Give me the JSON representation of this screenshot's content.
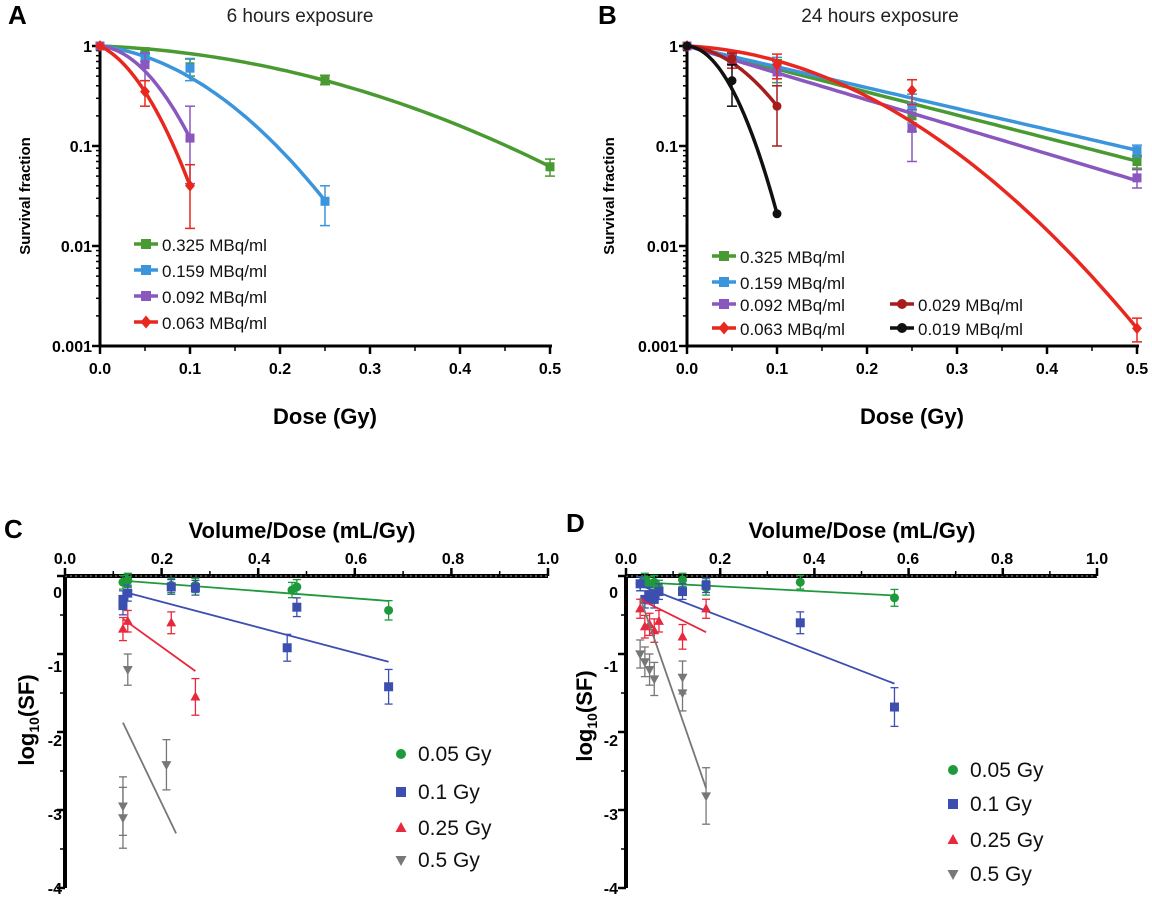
{
  "chart_data": [
    {
      "panel": "A",
      "type": "line",
      "title": "6 hours exposure",
      "xlabel": "Dose (Gy)",
      "ylabel": "Survival fraction",
      "xlim": [
        0,
        0.5
      ],
      "ylim": [
        0.001,
        1
      ],
      "yscale": "log",
      "xticks": [
        "0.0",
        "0.1",
        "0.2",
        "0.3",
        "0.4",
        "0.5"
      ],
      "yticks": [
        "1",
        "0.1",
        "0.01",
        "0.001"
      ],
      "series": [
        {
          "name": "0.325 MBq/ml",
          "color": "#4a9a32",
          "marker": "square",
          "x": [
            0,
            0.05,
            0.1,
            0.25,
            0.5
          ],
          "y": [
            1,
            0.88,
            0.62,
            0.46,
            0.062
          ],
          "err": [
            0,
            0.06,
            0.12,
            0.05,
            0.012
          ],
          "fit": {
            "alpha": 0.8,
            "beta": 9.5
          }
        },
        {
          "name": "0.159 MBq/ml",
          "color": "#3b95dc",
          "marker": "square",
          "x": [
            0,
            0.05,
            0.1,
            0.25
          ],
          "y": [
            1,
            0.78,
            0.6,
            0.028
          ],
          "err": [
            0,
            0.08,
            0.15,
            0.012
          ],
          "fit": {
            "alpha": 2.5,
            "beta": 47
          }
        },
        {
          "name": "0.092 MBq/ml",
          "color": "#8a57bf",
          "marker": "square",
          "x": [
            0,
            0.05,
            0.1
          ],
          "y": [
            1,
            0.65,
            0.12
          ],
          "err": [
            0,
            0.2,
            0.13
          ],
          "fit": {
            "alpha": 2,
            "beta": 192
          }
        },
        {
          "name": "0.063 MBq/ml",
          "color": "#e8281e",
          "marker": "diamond",
          "x": [
            0,
            0.05,
            0.1
          ],
          "y": [
            1,
            0.35,
            0.04
          ],
          "err": [
            0,
            0.1,
            0.025
          ],
          "fit": {
            "alpha": 10,
            "beta": 222
          }
        }
      ]
    },
    {
      "panel": "B",
      "type": "line",
      "title": "24 hours exposure",
      "xlabel": "Dose (Gy)",
      "ylabel": "Survival fraction",
      "xlim": [
        0,
        0.5
      ],
      "ylim": [
        0.001,
        1
      ],
      "yscale": "log",
      "xticks": [
        "0.0",
        "0.1",
        "0.2",
        "0.3",
        "0.4",
        "0.5"
      ],
      "yticks": [
        "1",
        "0.1",
        "0.01",
        "0.001"
      ],
      "series": [
        {
          "name": "0.325 MBq/ml",
          "color": "#4a9a32",
          "marker": "square",
          "x": [
            0,
            0.05,
            0.1,
            0.25,
            0.5
          ],
          "y": [
            1,
            0.75,
            0.58,
            0.2,
            0.07
          ],
          "err": [
            0,
            0.08,
            0.15,
            0.06,
            0.01
          ],
          "fit": {
            "alpha": 5.3,
            "beta": 0
          }
        },
        {
          "name": "0.159 MBq/ml",
          "color": "#3b95dc",
          "marker": "square",
          "x": [
            0,
            0.05,
            0.1,
            0.25,
            0.5
          ],
          "y": [
            1,
            0.78,
            0.62,
            0.25,
            0.09
          ],
          "err": [
            0,
            0.08,
            0.15,
            0.08,
            0.012
          ],
          "fit": {
            "alpha": 4.8,
            "beta": 0
          }
        },
        {
          "name": "0.092 MBq/ml",
          "color": "#8a57bf",
          "marker": "square",
          "x": [
            0,
            0.05,
            0.1,
            0.25,
            0.5
          ],
          "y": [
            1,
            0.7,
            0.55,
            0.15,
            0.048
          ],
          "err": [
            0,
            0.1,
            0.15,
            0.08,
            0.01
          ],
          "fit": {
            "alpha": 6.2,
            "beta": 0
          }
        },
        {
          "name": "0.063 MBq/ml",
          "color": "#e8281e",
          "marker": "diamond",
          "x": [
            0,
            0.05,
            0.1,
            0.25,
            0.5
          ],
          "y": [
            1,
            0.72,
            0.65,
            0.36,
            0.0015
          ],
          "err": [
            0,
            0.12,
            0.18,
            0.1,
            0.0004
          ],
          "fit": {
            "alpha": 1,
            "beta": 24
          }
        },
        {
          "name": "0.029 MBq/ml",
          "color": "#a51e1e",
          "marker": "circle",
          "x": [
            0,
            0.05,
            0.1
          ],
          "y": [
            1,
            0.75,
            0.25
          ],
          "err": [
            0,
            0.1,
            0.15
          ],
          "fit": {
            "alpha": 1.6,
            "beta": 122
          }
        },
        {
          "name": "0.019 MBq/ml",
          "color": "#111111",
          "marker": "circle",
          "x": [
            0,
            0.05,
            0.1
          ],
          "y": [
            1,
            0.45,
            0.021
          ],
          "err": [
            0,
            0.2,
            0
          ],
          "fit": {
            "alpha": 1,
            "beta": 376
          }
        }
      ]
    },
    {
      "panel": "C",
      "type": "scatter",
      "xlabel": "Volume/Dose (mL/Gy)",
      "ylabel": "log10(SF)",
      "xlim": [
        0,
        1.0
      ],
      "ylim": [
        -4,
        0
      ],
      "xticks": [
        "0.0",
        "0.2",
        "0.4",
        "0.6",
        "0.8",
        "1.0"
      ],
      "yticks": [
        "0",
        "-1",
        "-2",
        "-3",
        "-4"
      ],
      "series": [
        {
          "name": "0.05 Gy",
          "color": "#1e9a3c",
          "marker": "circle",
          "x": [
            0.12,
            0.13,
            0.13,
            0.22,
            0.27,
            0.47,
            0.48,
            0.67
          ],
          "y": [
            -0.08,
            -0.05,
            -0.06,
            -0.12,
            -0.12,
            -0.18,
            -0.14,
            -0.44
          ],
          "line": [
            [
              0.12,
              -0.06
            ],
            [
              0.67,
              -0.32
            ]
          ]
        },
        {
          "name": "0.1 Gy",
          "color": "#3c4fb0",
          "marker": "square",
          "x": [
            0.12,
            0.12,
            0.13,
            0.22,
            0.27,
            0.46,
            0.48,
            0.67
          ],
          "y": [
            -0.38,
            -0.3,
            -0.22,
            -0.14,
            -0.15,
            -0.92,
            -0.4,
            -1.42
          ],
          "line": [
            [
              0.12,
              -0.2
            ],
            [
              0.67,
              -1.1
            ]
          ]
        },
        {
          "name": "0.25 Gy",
          "color": "#e8283c",
          "marker": "triangle",
          "x": [
            0.12,
            0.13,
            0.22,
            0.27
          ],
          "y": [
            -0.68,
            -0.58,
            -0.6,
            -1.55
          ],
          "line": [
            [
              0.12,
              -0.55
            ],
            [
              0.27,
              -1.22
            ]
          ]
        },
        {
          "name": "0.5 Gy",
          "color": "#777777",
          "marker": "triangle-down",
          "x": [
            0.12,
            0.12,
            0.13,
            0.21
          ],
          "y": [
            -2.95,
            -3.1,
            -1.2,
            -2.42
          ],
          "line": [
            [
              0.12,
              -1.88
            ],
            [
              0.23,
              -3.3
            ]
          ]
        }
      ]
    },
    {
      "panel": "D",
      "type": "scatter",
      "xlabel": "Volume/Dose (mL/Gy)",
      "ylabel": "log10(SF)",
      "xlim": [
        0,
        1.0
      ],
      "ylim": [
        -4,
        0
      ],
      "xticks": [
        "0.0",
        "0.2",
        "0.4",
        "0.6",
        "0.8",
        "1.0"
      ],
      "yticks": [
        "0",
        "-1",
        "-2",
        "-3",
        "-4"
      ],
      "series": [
        {
          "name": "0.05 Gy",
          "color": "#1e9a3c",
          "marker": "circle",
          "x": [
            0.03,
            0.04,
            0.05,
            0.06,
            0.07,
            0.12,
            0.17,
            0.37,
            0.57
          ],
          "y": [
            -0.1,
            -0.05,
            -0.1,
            -0.08,
            -0.15,
            -0.05,
            -0.15,
            -0.08,
            -0.28
          ],
          "line": [
            [
              0.03,
              -0.08
            ],
            [
              0.57,
              -0.25
            ]
          ]
        },
        {
          "name": "0.1 Gy",
          "color": "#3c4fb0",
          "marker": "square",
          "x": [
            0.03,
            0.04,
            0.05,
            0.06,
            0.07,
            0.12,
            0.17,
            0.37,
            0.57
          ],
          "y": [
            -0.1,
            -0.3,
            -0.25,
            -0.3,
            -0.2,
            -0.2,
            -0.12,
            -0.6,
            -1.68
          ],
          "line": [
            [
              0.03,
              -0.12
            ],
            [
              0.57,
              -1.38
            ]
          ]
        },
        {
          "name": "0.25 Gy",
          "color": "#e8283c",
          "marker": "triangle",
          "x": [
            0.03,
            0.04,
            0.05,
            0.06,
            0.07,
            0.12,
            0.17
          ],
          "y": [
            -0.42,
            -0.65,
            -0.62,
            -0.7,
            -0.58,
            -0.78,
            -0.42
          ],
          "line": [
            [
              0.03,
              -0.3
            ],
            [
              0.17,
              -0.72
            ]
          ]
        },
        {
          "name": "0.5 Gy",
          "color": "#777777",
          "marker": "triangle-down",
          "x": [
            0.03,
            0.04,
            0.05,
            0.06,
            0.12,
            0.12,
            0.17
          ],
          "y": [
            -1.0,
            -1.1,
            -1.2,
            -1.32,
            -1.3,
            -1.5,
            -2.82
          ],
          "line": [
            [
              0.03,
              -0.28
            ],
            [
              0.17,
              -2.72
            ]
          ]
        }
      ]
    }
  ]
}
